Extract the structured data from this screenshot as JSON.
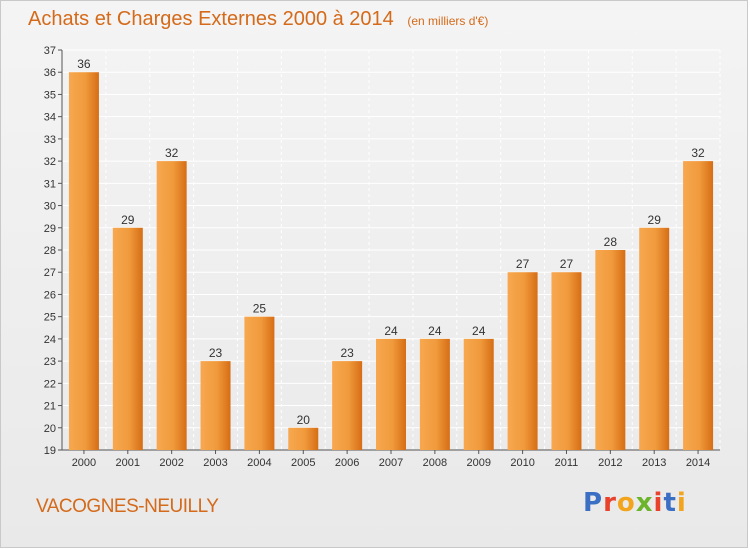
{
  "title": "Achats et Charges Externes 2000 à 2014",
  "subtitle": "(en milliers d'€)",
  "commune": "VACOGNES-NEUILLY",
  "logo": {
    "text": "Proxiti",
    "letter_colors": [
      "#3a6fc4",
      "#e8412c",
      "#f2a41c",
      "#6bb42c",
      "#e8412c",
      "#3a6fc4",
      "#f2a41c"
    ]
  },
  "colors": {
    "bar_light": "#f6a24a",
    "bar_dark": "#d66d15",
    "text_orange": "#d46a1a",
    "grid": "#ffffff"
  },
  "chart_data": {
    "type": "bar",
    "title": "Achats et Charges Externes 2000 à 2014",
    "categories": [
      "2000",
      "2001",
      "2002",
      "2003",
      "2004",
      "2005",
      "2006",
      "2007",
      "2008",
      "2009",
      "2010",
      "2011",
      "2012",
      "2013",
      "2014"
    ],
    "values": [
      36,
      29,
      32,
      23,
      25,
      20,
      23,
      24,
      24,
      24,
      27,
      27,
      28,
      29,
      32
    ],
    "ylim": [
      19,
      37
    ],
    "yticks": [
      19,
      20,
      21,
      22,
      23,
      24,
      25,
      26,
      27,
      28,
      29,
      30,
      31,
      32,
      33,
      34,
      35,
      36,
      37
    ],
    "grid": true,
    "xlabel": "",
    "ylabel": ""
  }
}
